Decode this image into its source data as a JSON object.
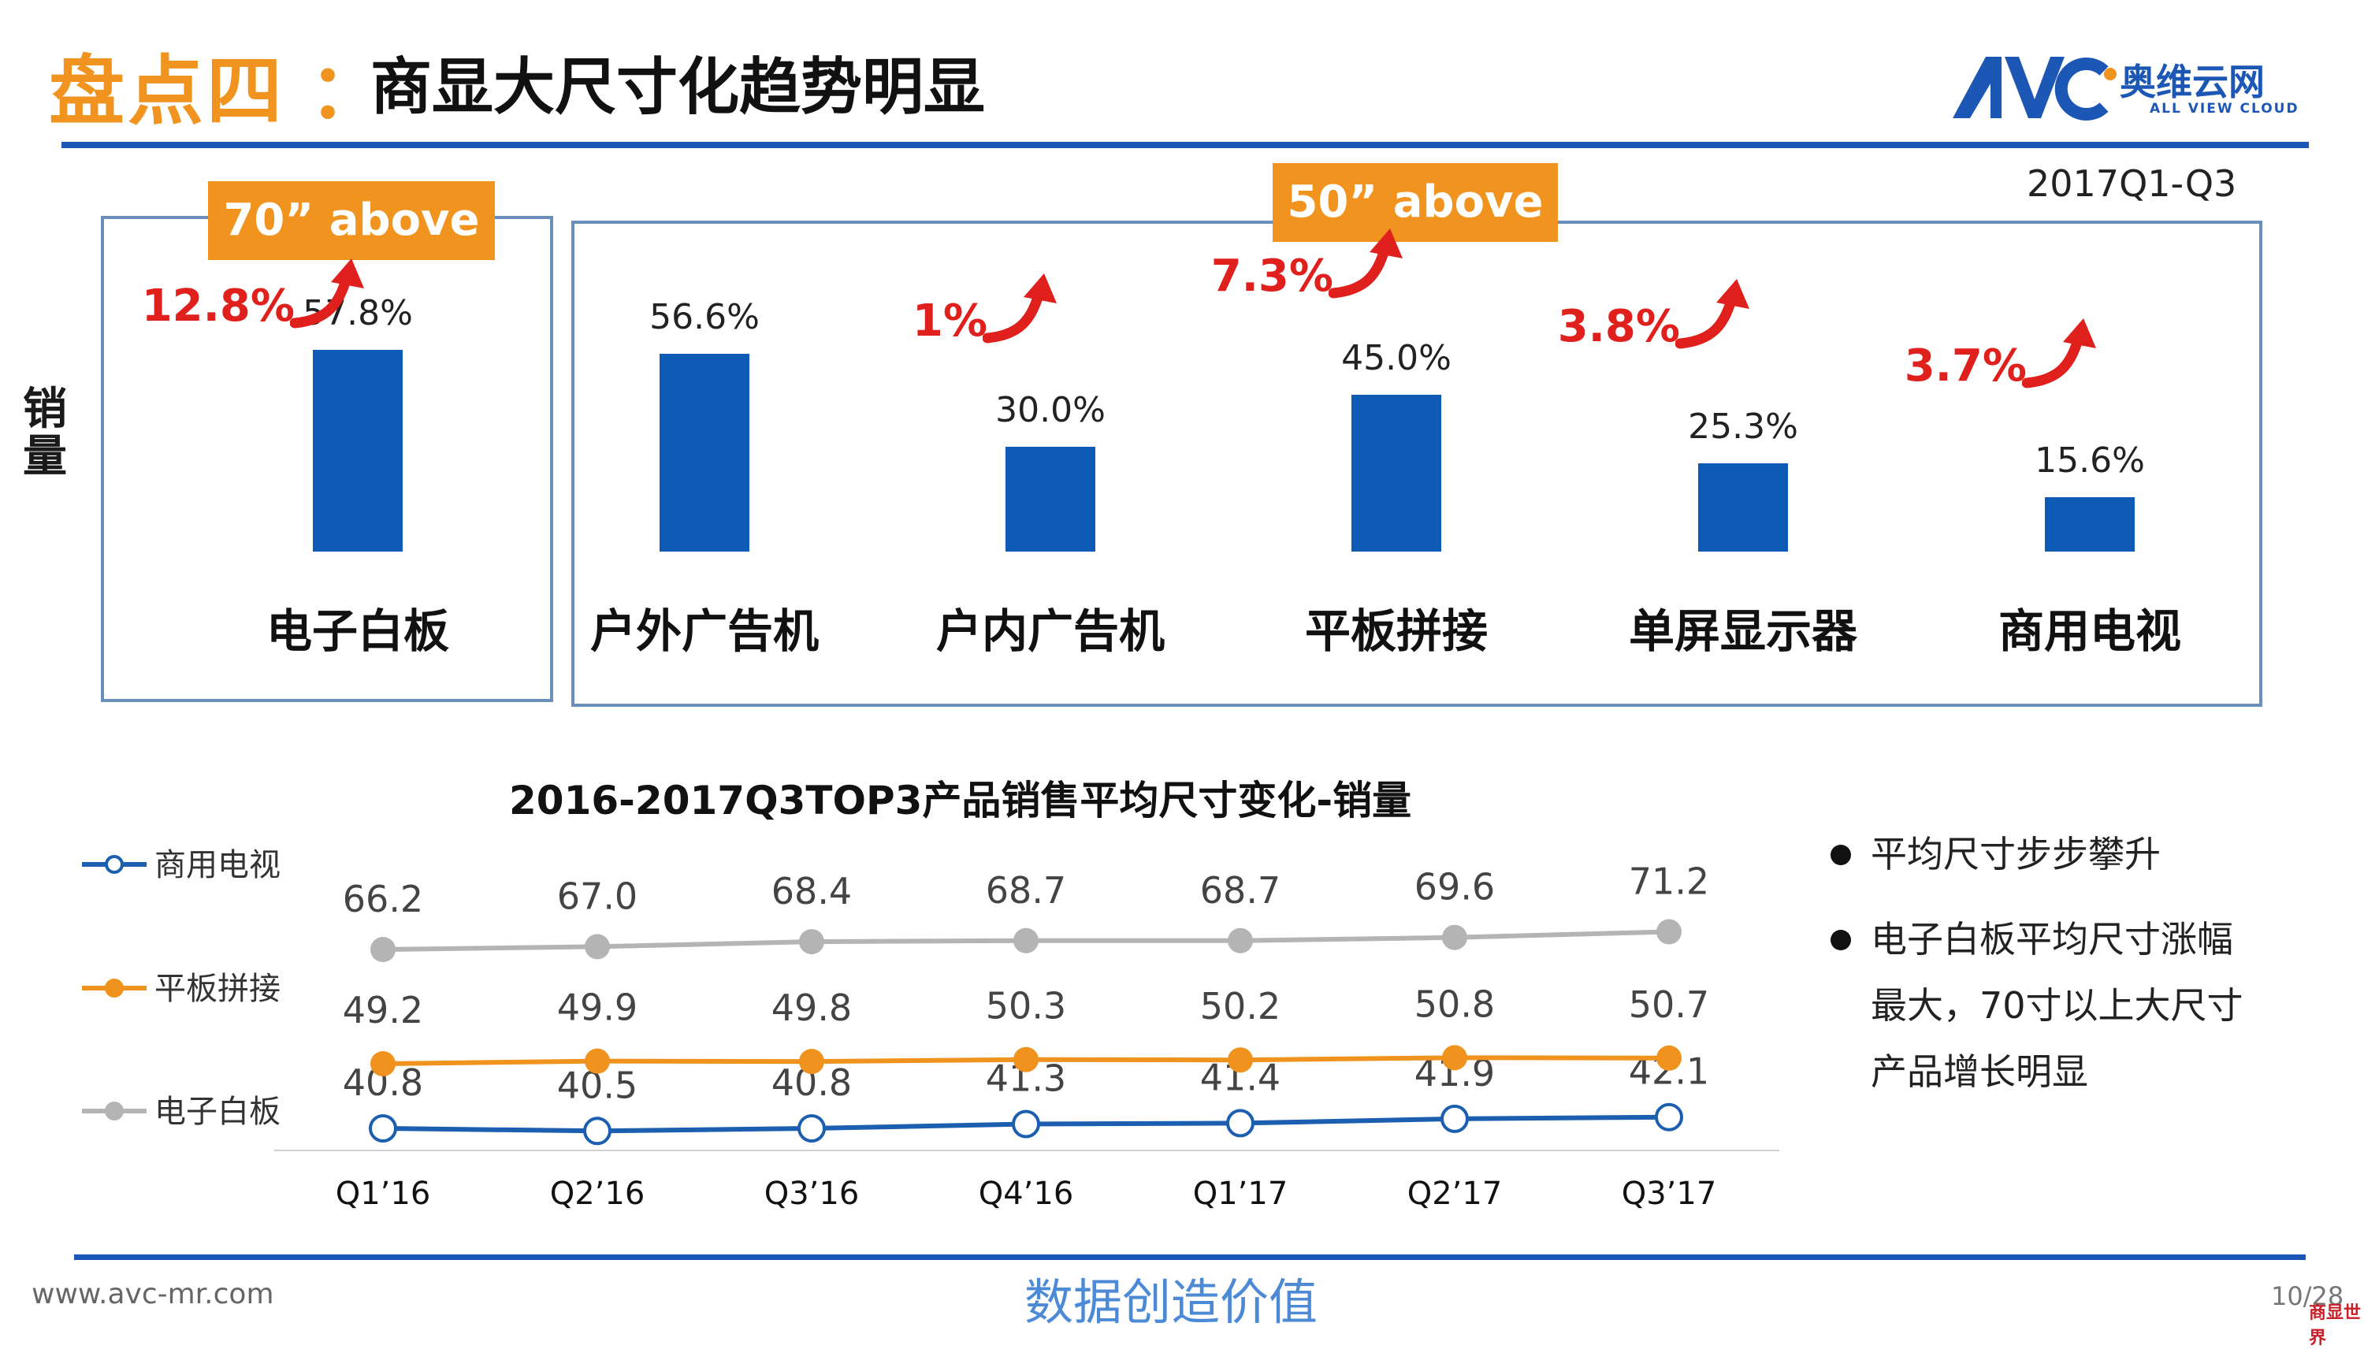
{
  "header": {
    "title_prefix": "盘点四",
    "title_colon": "：",
    "title_main": "商显大尺寸化趋势明显",
    "logo_text": "奥维云网",
    "logo_sub": "ALL VIEW CLOUD",
    "period": "2017Q1-Q3"
  },
  "y_axis_label": "销量",
  "tags": {
    "left": "70” above",
    "right": "50” above"
  },
  "colors": {
    "accent_orange": "#f0931f",
    "bar_blue": "#0e5bb5",
    "growth_red": "#e0201c",
    "brand_blue": "#1c57b5",
    "series_gray": "#b4b4b4"
  },
  "chart_data": [
    {
      "type": "bar",
      "categories": [
        "电子白板",
        "户外广告机",
        "户内广告机",
        "平板拼接",
        "单屏显示器",
        "商用电视"
      ],
      "values": [
        57.8,
        56.6,
        30.0,
        45.0,
        25.3,
        15.6
      ],
      "value_labels": [
        "57.8%",
        "56.6%",
        "30.0%",
        "45.0%",
        "25.3%",
        "15.6%"
      ],
      "growth": [
        "12.8%",
        "",
        "1%",
        "7.3%",
        "3.8%",
        "3.7%"
      ],
      "groups": [
        {
          "label": "70” above",
          "categories": [
            "电子白板"
          ]
        },
        {
          "label": "50” above",
          "categories": [
            "户外广告机",
            "户内广告机",
            "平板拼接",
            "单屏显示器",
            "商用电视"
          ]
        }
      ],
      "ylabel": "销量",
      "period": "2017Q1-Q3"
    },
    {
      "type": "line",
      "title": "2016-2017Q3TOP3产品销售平均尺寸变化-销量",
      "categories": [
        "Q1’16",
        "Q2’16",
        "Q3’16",
        "Q4’16",
        "Q1’17",
        "Q2’17",
        "Q3’17"
      ],
      "series": [
        {
          "name": "商用电视",
          "color": "#1c5fb0",
          "values": [
            40.8,
            40.5,
            40.8,
            41.3,
            41.4,
            41.9,
            42.1
          ]
        },
        {
          "name": "平板拼接",
          "color": "#f0921e",
          "values": [
            49.2,
            49.9,
            49.8,
            50.3,
            50.2,
            50.8,
            50.7
          ]
        },
        {
          "name": "电子白板",
          "color": "#b4b4b4",
          "values": [
            66.2,
            67.0,
            68.4,
            68.7,
            68.7,
            69.6,
            71.2
          ]
        }
      ],
      "legend_position": "left"
    }
  ],
  "bullets": [
    "平均尺寸步步攀升",
    "电子白板平均尺寸涨幅最大，70寸以上大尺寸产品增长明显"
  ],
  "footer": {
    "url": "www.avc-mr.com",
    "slogan": "数据创造价值",
    "page": "10/28",
    "stamp": "商显世界"
  }
}
